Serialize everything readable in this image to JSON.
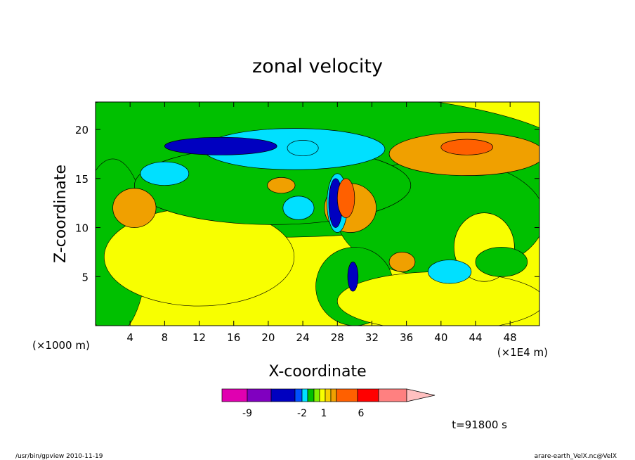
{
  "chart_data": {
    "type": "heatmap",
    "title": "zonal velocity",
    "xlabel": "X-coordinate",
    "ylabel": "Z-coordinate",
    "x_unit_left": "(×1000 m)",
    "x_unit_right": "(×1E4 m)",
    "xlim": [
      0,
      51.4
    ],
    "ylim": [
      0,
      22.8
    ],
    "x_ticks": [
      4,
      8,
      12,
      16,
      20,
      24,
      28,
      32,
      36,
      40,
      44,
      48
    ],
    "y_ticks": [
      5,
      10,
      15,
      20
    ],
    "grid": false,
    "time_label": "t=91800 s",
    "colorbar": {
      "colors": [
        "#e000b0",
        "#8000c0",
        "#0000c0",
        "#0050ff",
        "#00e0ff",
        "#00c000",
        "#80f000",
        "#f8ff00",
        "#f8d000",
        "#f0a000",
        "#ff6000",
        "#ff0000",
        "#ff8080",
        "#ffc0c0"
      ],
      "tick_labels": [
        "-9",
        "-2",
        "1",
        "6"
      ]
    },
    "features": [
      {
        "level": 2,
        "cx": 20.5,
        "cy": 14.3,
        "rx": 16,
        "ry": 4.0
      },
      {
        "level": 1,
        "cx": 23.0,
        "cy": 18.0,
        "rx": 10.5,
        "ry": 2.1
      },
      {
        "level": 0,
        "cx": 14.5,
        "cy": 18.3,
        "rx": 6.5,
        "ry": 0.9
      },
      {
        "level": 1,
        "cx": 24.0,
        "cy": 18.1,
        "rx": 1.8,
        "ry": 0.8
      },
      {
        "level": 1,
        "cx": 8.0,
        "cy": 15.5,
        "rx": 2.8,
        "ry": 1.2
      },
      {
        "level": 1,
        "cx": 23.5,
        "cy": 12.0,
        "rx": 1.8,
        "ry": 1.2
      },
      {
        "level": 4,
        "cx": 21.5,
        "cy": 14.3,
        "rx": 1.6,
        "ry": 0.8
      },
      {
        "level": 4,
        "cx": 29.5,
        "cy": 12.0,
        "rx": 3.0,
        "ry": 2.5
      },
      {
        "level": 4,
        "cx": 43.0,
        "cy": 17.5,
        "rx": 9.0,
        "ry": 2.2
      },
      {
        "level": 5,
        "cx": 43.0,
        "cy": 18.2,
        "rx": 3.0,
        "ry": 0.8
      },
      {
        "level": 4,
        "cx": 4.5,
        "cy": 12.0,
        "rx": 2.5,
        "ry": 2.0
      },
      {
        "level": 3,
        "cx": 45.0,
        "cy": 8.0,
        "rx": 3.5,
        "ry": 3.5
      },
      {
        "level": 2,
        "cx": 47.0,
        "cy": 6.5,
        "rx": 3.0,
        "ry": 1.5
      },
      {
        "level": 4,
        "cx": 35.5,
        "cy": 6.5,
        "rx": 1.5,
        "ry": 1.0
      },
      {
        "level": 1,
        "cx": 41.0,
        "cy": 5.5,
        "rx": 2.5,
        "ry": 1.2
      },
      {
        "level": 1,
        "cx": 28.0,
        "cy": 12.5,
        "rx": 1.2,
        "ry": 3.0
      },
      {
        "level": 0,
        "cx": 27.8,
        "cy": 12.5,
        "rx": 0.8,
        "ry": 2.5
      },
      {
        "level": 5,
        "cx": 29.0,
        "cy": 13.0,
        "rx": 1.0,
        "ry": 2.0
      },
      {
        "level": 0,
        "cx": 29.8,
        "cy": 5.0,
        "rx": 0.6,
        "ry": 1.5
      }
    ]
  },
  "footer": {
    "left": "/usr/bin/gpview   2010-11-19",
    "right": "arare-earth_VelX.nc@VelX"
  }
}
